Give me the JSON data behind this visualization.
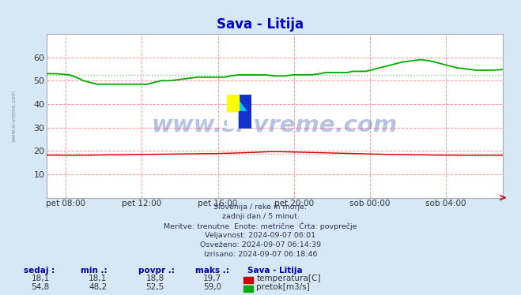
{
  "title": "Sava - Litija",
  "bg_color": "#d6e8f5",
  "plot_bg_color": "#ffffff",
  "grid_color_major": "#ff9999",
  "x_labels": [
    "pet 08:00",
    "pet 12:00",
    "pet 16:00",
    "pet 20:00",
    "sob 00:00",
    "sob 04:00"
  ],
  "x_ticks_norm": [
    0.0417,
    0.2083,
    0.375,
    0.5417,
    0.7083,
    0.875
  ],
  "ylim": [
    0,
    70
  ],
  "yticks": [
    10,
    20,
    30,
    40,
    50,
    60
  ],
  "temp_color": "#cc0000",
  "flow_color": "#00aa00",
  "avg_temp_color": "#ff8888",
  "avg_flow_color": "#88cc88",
  "temp_avg": 18.8,
  "flow_avg": 52.5,
  "watermark_text": "www.si-vreme.com",
  "watermark_color": "#3355aa",
  "watermark_alpha": 0.35,
  "info_lines": [
    "Slovenija / reke in morje.",
    "zadnji dan / 5 minut.",
    "Meritve: trenutne  Enote: metrične  Črta: povprečje",
    "Veljavnost: 2024-09-07 06:01",
    "Osveženo: 2024-09-07 06:14:39",
    "Izrisano: 2024-09-07 06:18:46"
  ],
  "table_row1": [
    "18,1",
    "18,1",
    "18,8",
    "19,7"
  ],
  "table_row2": [
    "54,8",
    "48,2",
    "52,5",
    "59,0"
  ],
  "table_label1": "temperatura[C]",
  "table_label2": "pretok[m3/s]",
  "station_label": "Sava - Litija",
  "temp_data_x": [
    0,
    0.02,
    0.04,
    0.05,
    0.06,
    0.07,
    0.08,
    0.09,
    0.1,
    0.11,
    0.12,
    0.13,
    0.14,
    0.15,
    0.17,
    0.19,
    0.22,
    0.25,
    0.27,
    0.29,
    0.31,
    0.33,
    0.36,
    0.38,
    0.4,
    0.42,
    0.43,
    0.44,
    0.45,
    0.46,
    0.47,
    0.48,
    0.5,
    0.52,
    0.54,
    0.56,
    0.58,
    0.6,
    0.62,
    0.64,
    0.66,
    0.68,
    0.7,
    0.72,
    0.74,
    0.76,
    0.78,
    0.8,
    0.82,
    0.84,
    0.86,
    0.88,
    0.9,
    0.92,
    0.94,
    0.96,
    0.98,
    1.0
  ],
  "temp_data_y": [
    18.2,
    18.2,
    18.1,
    18.1,
    18.1,
    18.1,
    18.1,
    18.1,
    18.2,
    18.2,
    18.2,
    18.3,
    18.3,
    18.3,
    18.4,
    18.5,
    18.5,
    18.6,
    18.6,
    18.7,
    18.7,
    18.8,
    18.8,
    18.9,
    19.0,
    19.1,
    19.2,
    19.3,
    19.3,
    19.4,
    19.5,
    19.6,
    19.7,
    19.6,
    19.5,
    19.4,
    19.3,
    19.2,
    19.1,
    19.0,
    18.9,
    18.8,
    18.7,
    18.6,
    18.5,
    18.5,
    18.4,
    18.3,
    18.3,
    18.2,
    18.2,
    18.2,
    18.1,
    18.1,
    18.1,
    18.1,
    18.1,
    18.1
  ],
  "flow_data_x": [
    0,
    0.02,
    0.05,
    0.07,
    0.08,
    0.09,
    0.1,
    0.11,
    0.12,
    0.13,
    0.14,
    0.15,
    0.155,
    0.16,
    0.17,
    0.18,
    0.19,
    0.2,
    0.21,
    0.22,
    0.23,
    0.24,
    0.25,
    0.27,
    0.29,
    0.31,
    0.33,
    0.35,
    0.37,
    0.375,
    0.38,
    0.39,
    0.4,
    0.42,
    0.44,
    0.46,
    0.48,
    0.5,
    0.52,
    0.54,
    0.56,
    0.58,
    0.6,
    0.61,
    0.62,
    0.63,
    0.64,
    0.65,
    0.66,
    0.67,
    0.68,
    0.69,
    0.7,
    0.71,
    0.72,
    0.73,
    0.74,
    0.75,
    0.76,
    0.77,
    0.78,
    0.8,
    0.82,
    0.84,
    0.86,
    0.88,
    0.9,
    0.92,
    0.94,
    0.96,
    0.98,
    1.0
  ],
  "flow_data_y": [
    53.0,
    53.0,
    52.5,
    51.0,
    50.0,
    49.5,
    49.0,
    48.5,
    48.5,
    48.5,
    48.5,
    48.5,
    48.5,
    48.5,
    48.5,
    48.5,
    48.5,
    48.5,
    48.5,
    48.5,
    49.0,
    49.5,
    50.0,
    50.0,
    50.5,
    51.0,
    51.5,
    51.5,
    51.5,
    51.5,
    51.5,
    51.5,
    52.0,
    52.5,
    52.5,
    52.5,
    52.5,
    52.0,
    52.0,
    52.5,
    52.5,
    52.5,
    53.0,
    53.5,
    53.5,
    53.5,
    53.5,
    53.5,
    53.5,
    54.0,
    54.0,
    54.0,
    54.0,
    54.5,
    55.0,
    55.5,
    56.0,
    56.5,
    57.0,
    57.5,
    58.0,
    58.5,
    59.0,
    58.5,
    57.5,
    56.5,
    55.5,
    55.0,
    54.5,
    54.5,
    54.5,
    54.8
  ]
}
